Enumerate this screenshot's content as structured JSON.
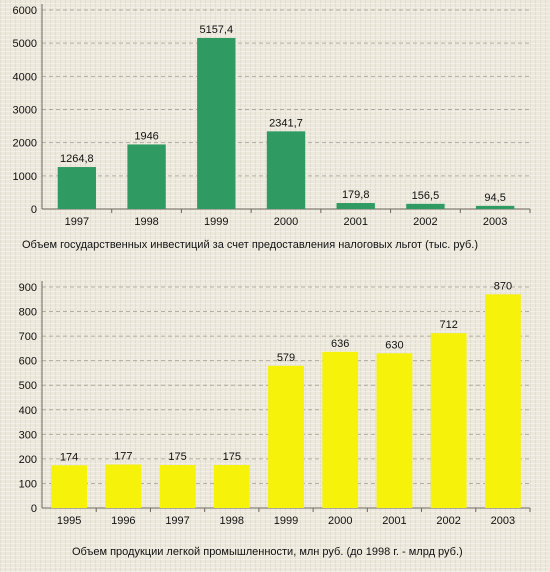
{
  "chart_data": [
    {
      "type": "bar",
      "categories": [
        "1997",
        "1998",
        "1999",
        "2000",
        "2001",
        "2002",
        "2003"
      ],
      "values": [
        1264.8,
        1946,
        5157.4,
        2341.7,
        179.8,
        156.5,
        94.5
      ],
      "value_labels": [
        "1264,8",
        "1946",
        "5157,4",
        "2341,7",
        "179,8",
        "156,5",
        "94,5"
      ],
      "yticks": [
        "0",
        "1000",
        "2000",
        "3000",
        "4000",
        "5000",
        "6000"
      ],
      "ylim": [
        0,
        6000
      ],
      "caption": "Объем государственных инвестиций за счет предоставления налоговых льгот (тыс. руб.)",
      "color": "#2f9a62",
      "grid": true
    },
    {
      "type": "bar",
      "categories": [
        "1995",
        "1996",
        "1997",
        "1998",
        "1999",
        "2000",
        "2001",
        "2002",
        "2003"
      ],
      "values": [
        174,
        177,
        175,
        175,
        579,
        636,
        630,
        712,
        870
      ],
      "value_labels": [
        "174",
        "177",
        "175",
        "175",
        "579",
        "636",
        "630",
        "712",
        "870"
      ],
      "yticks": [
        "0",
        "100",
        "200",
        "300",
        "400",
        "500",
        "600",
        "700",
        "800",
        "900"
      ],
      "ylim": [
        0,
        900
      ],
      "caption": "Объем продукции легкой промышленности, млн руб. (до 1998 г. - млрд руб.)",
      "color": "#f6f20a",
      "grid": true
    }
  ]
}
